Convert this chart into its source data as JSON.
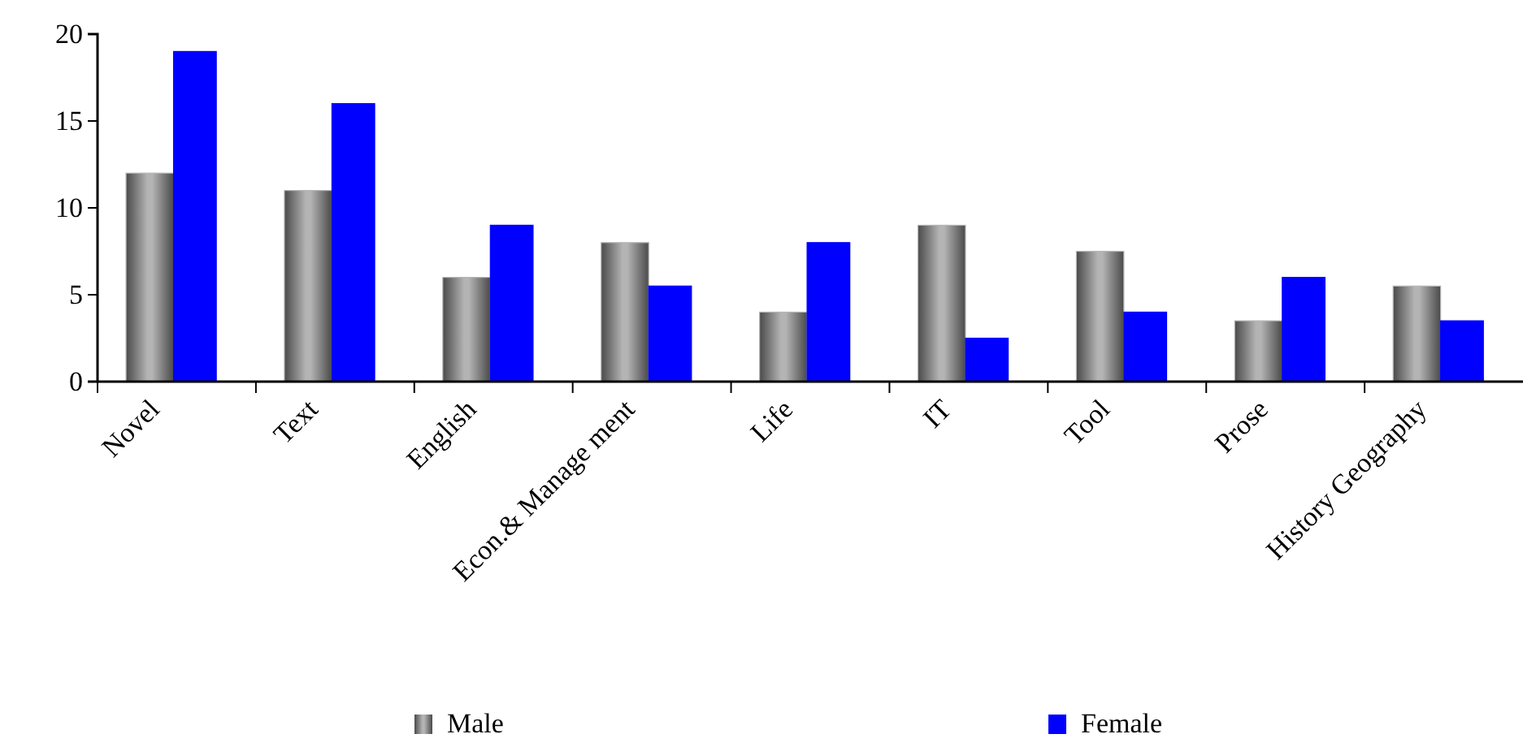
{
  "chart_data": {
    "type": "bar",
    "categories": [
      "Novel",
      "Text",
      "English",
      "Econ.& Manage ment",
      "Life",
      "IT",
      "Tool",
      "Prose",
      "History Geography"
    ],
    "series": [
      {
        "name": "Male",
        "color": "#b4b4b4",
        "values": [
          12,
          11,
          6,
          8,
          4,
          9,
          7.5,
          3.5,
          5.5
        ]
      },
      {
        "name": "Female",
        "color": "#0000ff",
        "values": [
          19,
          16,
          9,
          5.5,
          8,
          2.5,
          4,
          6,
          3.5
        ]
      }
    ],
    "ylim": [
      0,
      20
    ],
    "yticks": [
      0,
      5,
      10,
      15,
      20
    ],
    "grid": false,
    "legend": "bottom"
  }
}
